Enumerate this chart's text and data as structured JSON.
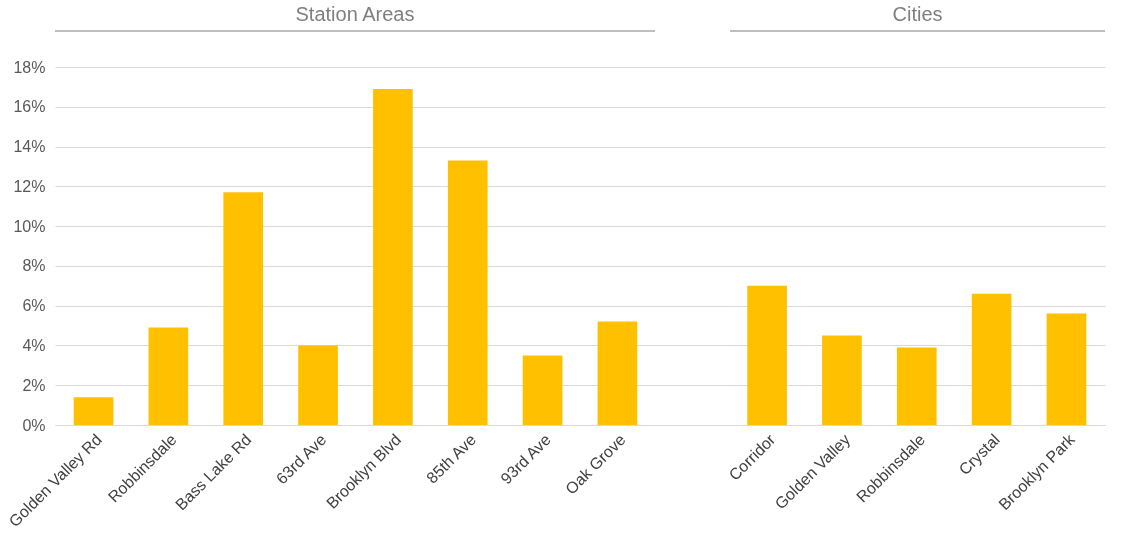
{
  "chart_data": {
    "type": "bar",
    "categories": [
      "Golden Valley Rd",
      "Robbinsdale",
      "Bass Lake Rd",
      "63rd Ave",
      "Brooklyn Blvd",
      "85th Ave",
      "93rd Ave",
      "Oak Grove",
      null,
      "Corridor",
      "Golden Valley",
      "Robbinsdale",
      "Crystal",
      "Brooklyn Park"
    ],
    "values": [
      1.4,
      4.9,
      11.7,
      4.0,
      16.9,
      13.3,
      3.5,
      5.2,
      null,
      7.0,
      4.5,
      3.9,
      6.6,
      5.6
    ],
    "color": "#ffc000",
    "ylim": [
      0,
      18
    ],
    "yticks": [
      {
        "value": 0,
        "label": "0%"
      },
      {
        "value": 2,
        "label": "2%"
      },
      {
        "value": 4,
        "label": "4%"
      },
      {
        "value": 6,
        "label": "6%"
      },
      {
        "value": 8,
        "label": "8%"
      },
      {
        "value": 10,
        "label": "10%"
      },
      {
        "value": 12,
        "label": "12%"
      },
      {
        "value": 14,
        "label": "14%"
      },
      {
        "value": 16,
        "label": "16%"
      },
      {
        "value": 18,
        "label": "18%"
      }
    ],
    "grid": "y",
    "annotations": [
      "Station Areas",
      "Cities"
    ]
  }
}
